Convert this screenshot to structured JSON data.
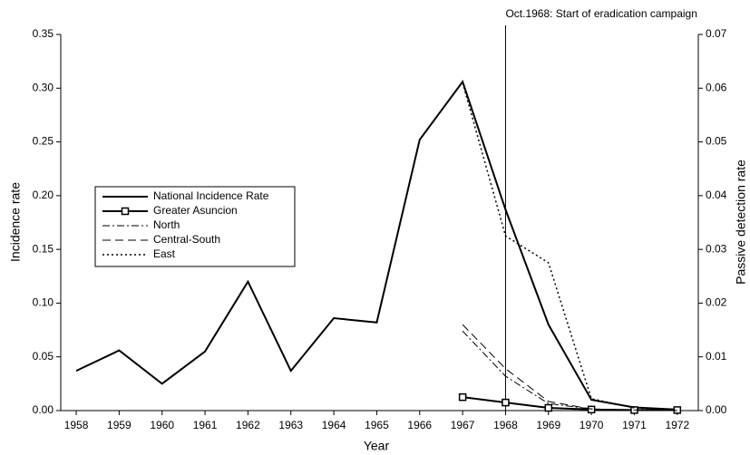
{
  "chart_data": {
    "type": "line",
    "x": [
      1958,
      1959,
      1960,
      1961,
      1962,
      1963,
      1964,
      1965,
      1966,
      1967,
      1968,
      1969,
      1970,
      1971,
      1972
    ],
    "xlim": [
      1957.64,
      1972.49
    ],
    "xticks": [
      1958,
      1959,
      1960,
      1961,
      1962,
      1963,
      1964,
      1965,
      1966,
      1967,
      1968,
      1969,
      1970,
      1971,
      1972
    ],
    "xlabel": "Year",
    "ylabel": "Incidence rate",
    "y2label": "Passive detection rate",
    "ylim": [
      0,
      0.35
    ],
    "yticks": [
      {
        "value": 0,
        "label": "0.00"
      },
      {
        "value": 0.05,
        "label": "0.05"
      },
      {
        "value": 0.1,
        "label": "0.10"
      },
      {
        "value": 0.15,
        "label": "0.15"
      },
      {
        "value": 0.2,
        "label": "0.20"
      },
      {
        "value": 0.25,
        "label": "0.25"
      },
      {
        "value": 0.3,
        "label": "0.30"
      },
      {
        "value": 0.35,
        "label": "0.35"
      }
    ],
    "y2lim": [
      0,
      0.07
    ],
    "y2ticks": [
      {
        "value": 0,
        "label": "0.00"
      },
      {
        "value": 0.01,
        "label": "0.01"
      },
      {
        "value": 0.02,
        "label": "0.02"
      },
      {
        "value": 0.03,
        "label": "0.03"
      },
      {
        "value": 0.04,
        "label": "0.04"
      },
      {
        "value": 0.05,
        "label": "0.05"
      },
      {
        "value": 0.06,
        "label": "0.06"
      },
      {
        "value": 0.07,
        "label": "0.07"
      }
    ],
    "legend": "left",
    "annotation": {
      "text": "Oct.1968: Start of eradication campaign",
      "x": 1968
    },
    "series": [
      {
        "name": "National Incidence Rate",
        "color": "#000000",
        "style": "solid",
        "width": 2,
        "values": [
          0.037,
          0.056,
          0.025,
          0.055,
          0.12,
          0.037,
          0.086,
          0.082,
          0.252,
          0.306,
          0.187,
          0.08,
          0.01,
          0.003,
          0.001
        ]
      },
      {
        "name": "Greater Asuncion",
        "color": "#000000",
        "style": "solid",
        "width": 2,
        "marker": "square",
        "axis": "y2",
        "values": [
          null,
          null,
          null,
          null,
          null,
          null,
          null,
          null,
          null,
          0.0025,
          0.0015,
          0.0005,
          0.0002,
          0.0001,
          0.0001
        ]
      },
      {
        "name": "North",
        "color": "#000000",
        "style": "dashdot",
        "width": 1,
        "axis": "y2",
        "values": [
          null,
          null,
          null,
          null,
          null,
          null,
          null,
          null,
          null,
          0.0148,
          0.0064,
          0.0013,
          0.0003,
          0.0001,
          0
        ]
      },
      {
        "name": "Central-South",
        "color": "#000000",
        "style": "dashed",
        "width": 1,
        "axis": "y2",
        "values": [
          null,
          null,
          null,
          null,
          null,
          null,
          null,
          null,
          null,
          0.016,
          0.0078,
          0.0017,
          0.0003,
          0.0001,
          0
        ]
      },
      {
        "name": "East",
        "color": "#000000",
        "style": "dotted",
        "width": 1.5,
        "axis": "y2",
        "values": [
          null,
          null,
          null,
          null,
          null,
          null,
          null,
          null,
          null,
          0.061,
          0.0325,
          0.0275,
          0.0022,
          0.0005,
          0.0001
        ]
      }
    ]
  }
}
